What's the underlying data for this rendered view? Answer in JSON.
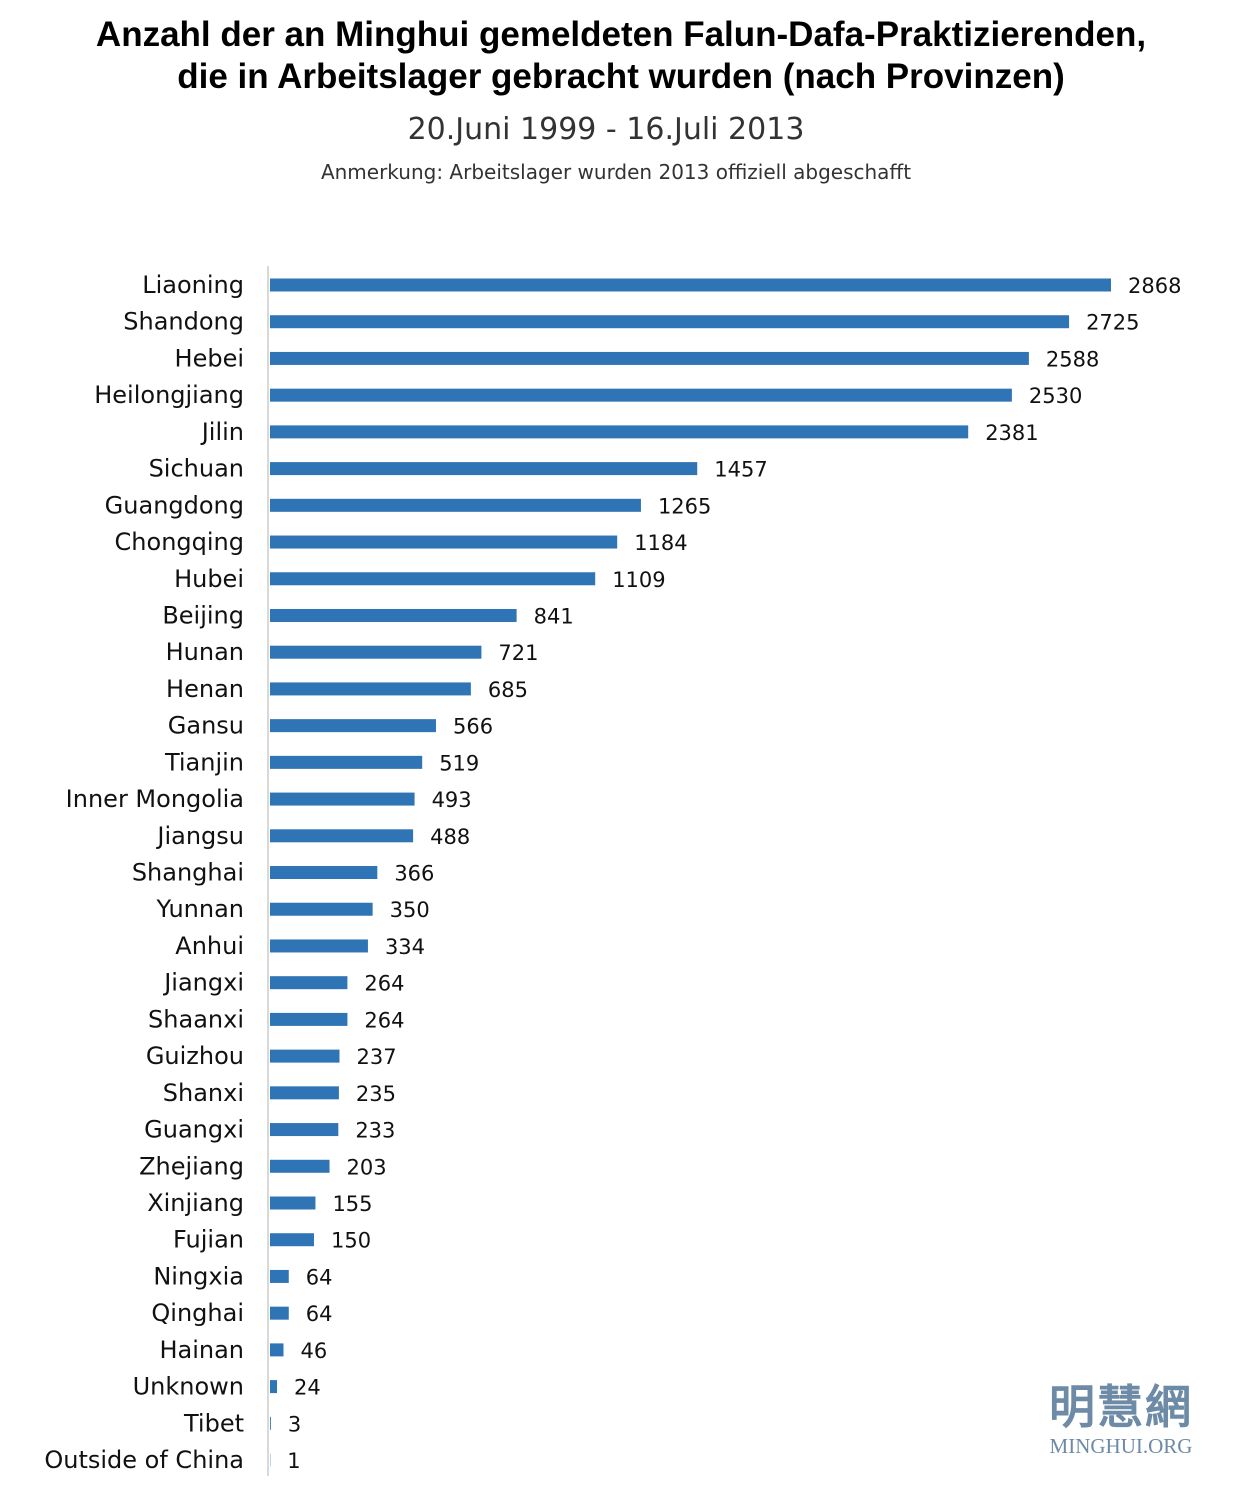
{
  "chart_data": {
    "type": "bar",
    "orientation": "horizontal",
    "title": "Anzahl der an Minghui gemeldeten Falun-Dafa-Praktizierenden, die in Arbeitslager gebracht wurden (nach Provinzen)",
    "title_lines": [
      "Anzahl der an Minghui gemeldeten Falun-Dafa-Praktizierenden,",
      "die in Arbeitslager gebracht wurden (nach Provinzen)"
    ],
    "subtitle": "20.Juni 1999 - 16.Juli 2013",
    "note": "Anmerkung: Arbeitslager wurden 2013 offiziell abgeschafft",
    "categories": [
      "Liaoning",
      "Shandong",
      "Hebei",
      "Heilongjiang",
      "Jilin",
      "Sichuan",
      "Guangdong",
      "Chongqing",
      "Hubei",
      "Beijing",
      "Hunan",
      "Henan",
      "Gansu",
      "Tianjin",
      "Inner Mongolia",
      "Jiangsu",
      "Shanghai",
      "Yunnan",
      "Anhui",
      "Jiangxi",
      "Shaanxi",
      "Guizhou",
      "Shanxi",
      "Guangxi",
      "Zhejiang",
      "Xinjiang",
      "Fujian",
      "Ningxia",
      "Qinghai",
      "Hainan",
      "Unknown",
      "Tibet",
      "Outside of China"
    ],
    "values": [
      2868,
      2725,
      2588,
      2530,
      2381,
      1457,
      1265,
      1184,
      1109,
      841,
      721,
      685,
      566,
      519,
      493,
      488,
      366,
      350,
      334,
      264,
      264,
      237,
      235,
      233,
      203,
      155,
      150,
      64,
      64,
      46,
      24,
      3,
      1
    ],
    "xlabel": "",
    "ylabel": "",
    "xlim": [
      0,
      2868
    ],
    "grid": false,
    "legend": "none",
    "data_labels": true,
    "bar_color": "#2f75b5",
    "axis_color": "#d9d9d9"
  },
  "watermark": {
    "cjk": "明慧網",
    "latin": "MINGHUI.ORG",
    "color": "#6d8aa6"
  }
}
